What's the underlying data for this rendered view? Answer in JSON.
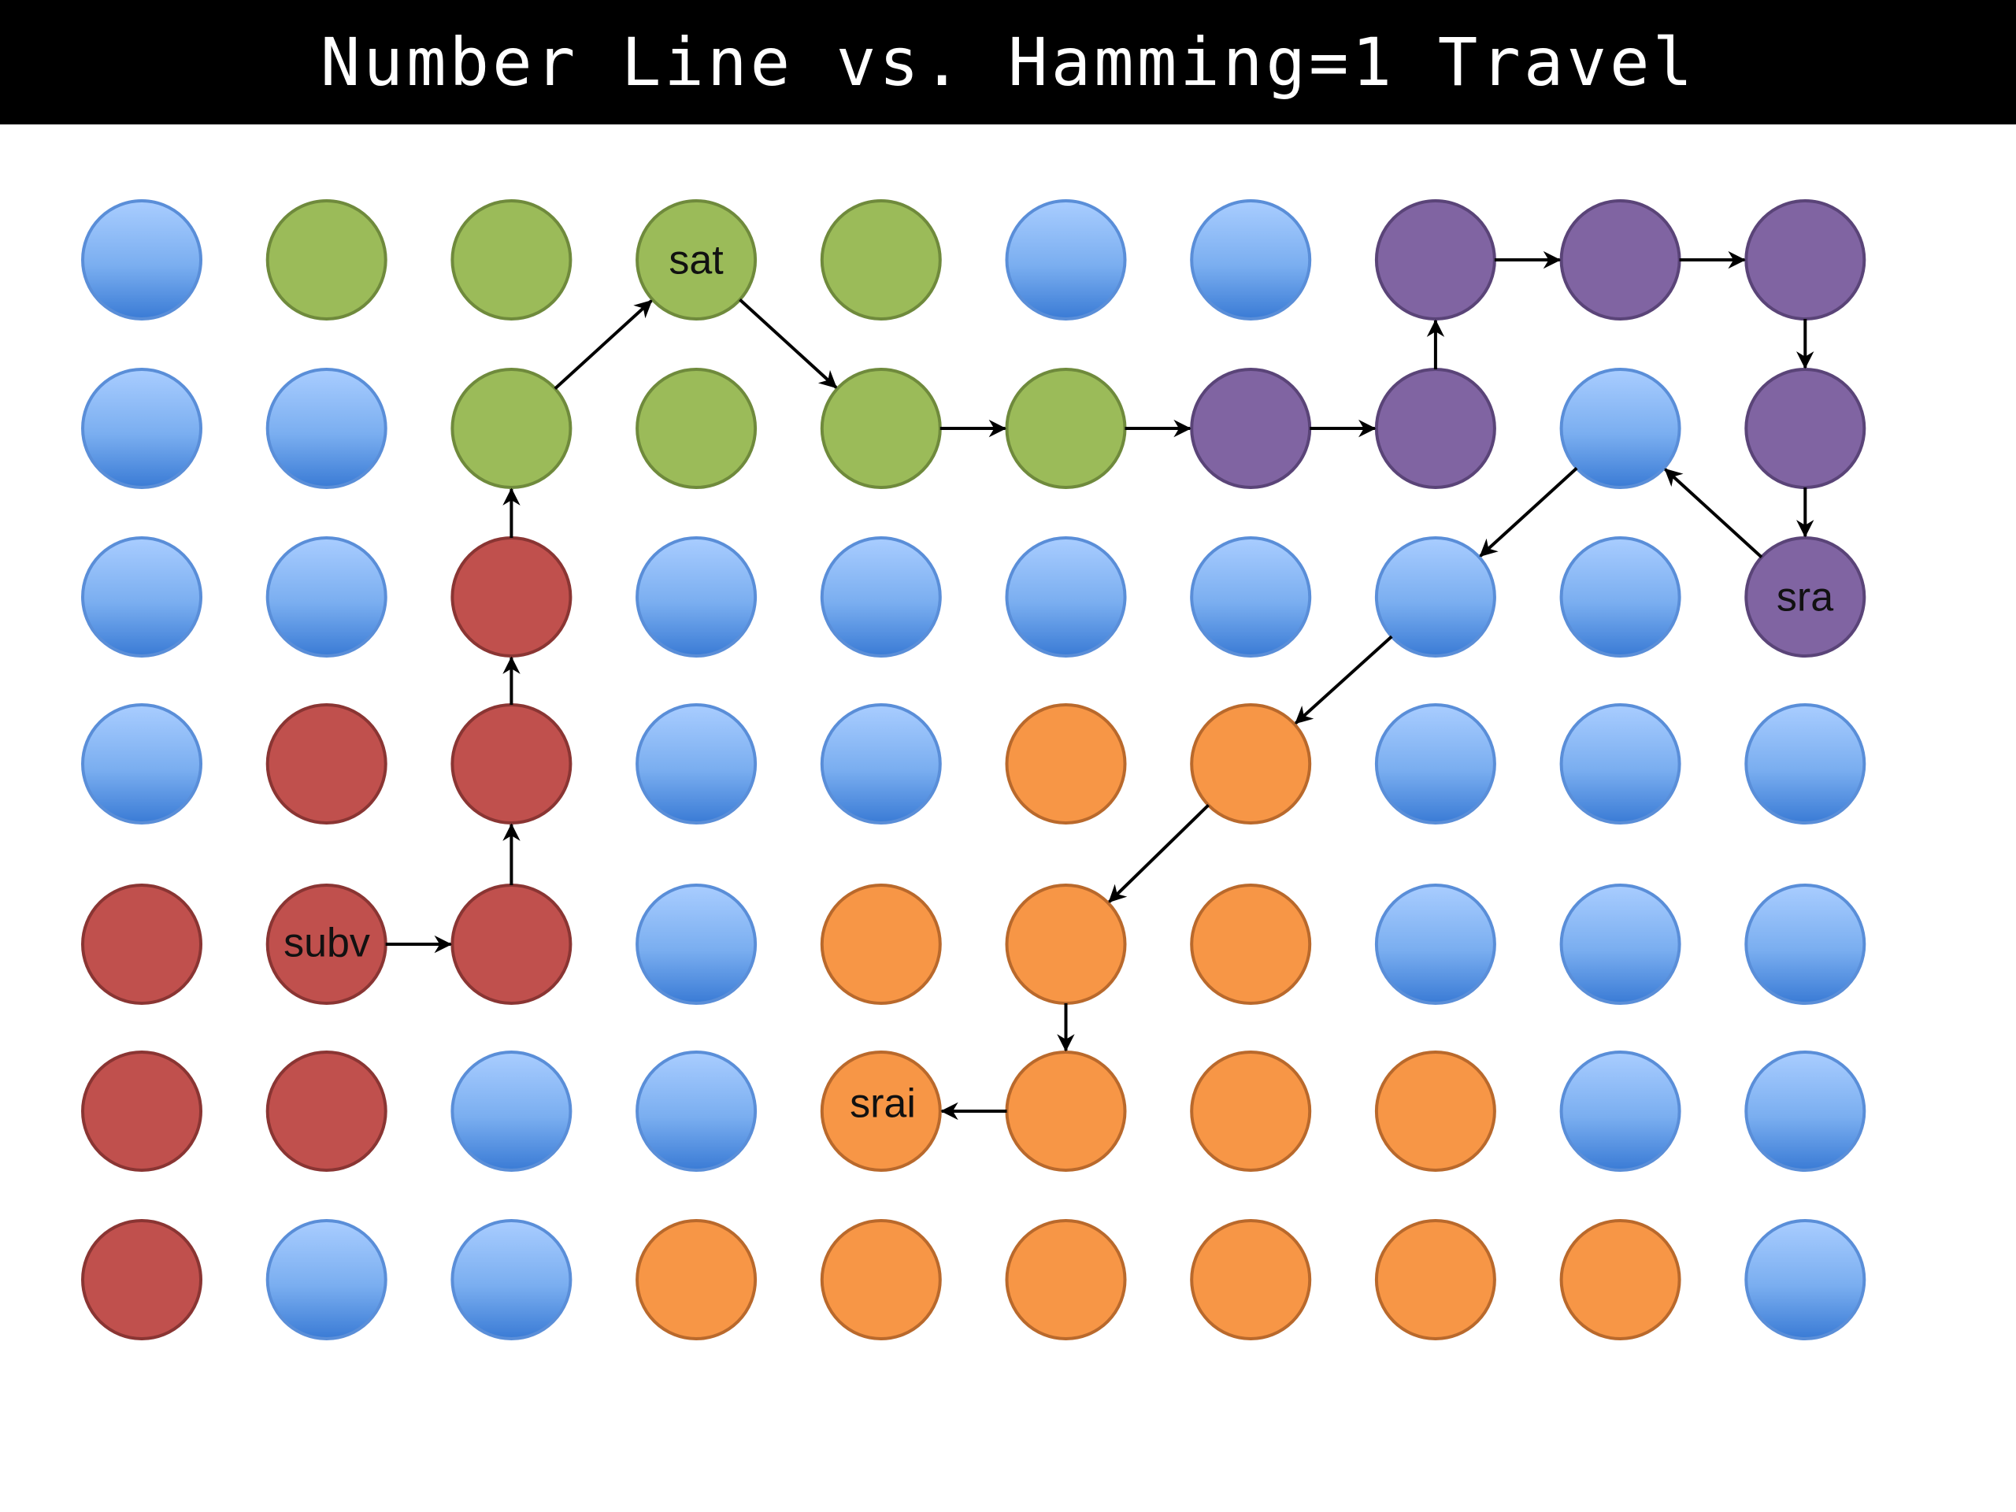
{
  "title": "Number Line vs. Hamming=1 Travel",
  "nodes": [
    {
      "label": "sat"
    },
    {
      "label": "sra"
    },
    {
      "label": "subv"
    },
    {
      "label": "srai"
    }
  ]
}
